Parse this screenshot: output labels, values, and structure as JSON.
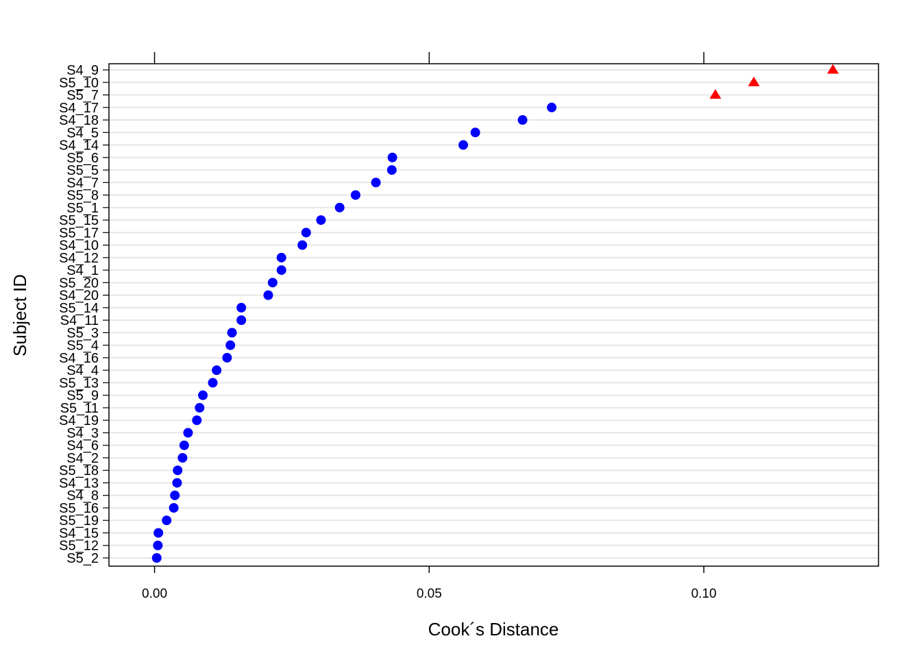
{
  "chart_data": {
    "type": "scatter",
    "xlabel": "Cook´s Distance",
    "ylabel": "Subject ID",
    "xlim": [
      -0.0083,
      0.1318
    ],
    "x_ticks": [
      0.0,
      0.05,
      0.1
    ],
    "x_tick_labels": [
      "0.00",
      "0.05",
      "0.10"
    ],
    "grid": true,
    "colors": {
      "normal": "#0000FF",
      "outlier": "#FF0000",
      "grid": "#E6E6E6"
    },
    "markers": {
      "normal": "circle",
      "outlier": "triangle"
    },
    "points": [
      {
        "id": "S4_9",
        "value": 0.1235,
        "outlier": true
      },
      {
        "id": "S5_10",
        "value": 0.1091,
        "outlier": true
      },
      {
        "id": "S5_7",
        "value": 0.1021,
        "outlier": true
      },
      {
        "id": "S4_17",
        "value": 0.0723,
        "outlier": false
      },
      {
        "id": "S4_18",
        "value": 0.067,
        "outlier": false
      },
      {
        "id": "S4_5",
        "value": 0.0584,
        "outlier": false
      },
      {
        "id": "S4_14",
        "value": 0.0562,
        "outlier": false
      },
      {
        "id": "S5_6",
        "value": 0.0433,
        "outlier": false
      },
      {
        "id": "S5_5",
        "value": 0.0432,
        "outlier": false
      },
      {
        "id": "S4_7",
        "value": 0.0403,
        "outlier": false
      },
      {
        "id": "S5_8",
        "value": 0.0366,
        "outlier": false
      },
      {
        "id": "S5_1",
        "value": 0.0337,
        "outlier": false
      },
      {
        "id": "S5_15",
        "value": 0.0303,
        "outlier": false
      },
      {
        "id": "S5_17",
        "value": 0.0276,
        "outlier": false
      },
      {
        "id": "S4_10",
        "value": 0.0269,
        "outlier": false
      },
      {
        "id": "S4_12",
        "value": 0.0231,
        "outlier": false
      },
      {
        "id": "S4_1",
        "value": 0.0231,
        "outlier": false
      },
      {
        "id": "S5_20",
        "value": 0.0215,
        "outlier": false
      },
      {
        "id": "S4_20",
        "value": 0.0207,
        "outlier": false
      },
      {
        "id": "S5_14",
        "value": 0.0158,
        "outlier": false
      },
      {
        "id": "S4_11",
        "value": 0.0158,
        "outlier": false
      },
      {
        "id": "S5_3",
        "value": 0.0141,
        "outlier": false
      },
      {
        "id": "S5_4",
        "value": 0.0138,
        "outlier": false
      },
      {
        "id": "S4_16",
        "value": 0.0132,
        "outlier": false
      },
      {
        "id": "S4_4",
        "value": 0.0113,
        "outlier": false
      },
      {
        "id": "S5_13",
        "value": 0.0106,
        "outlier": false
      },
      {
        "id": "S5_9",
        "value": 0.0088,
        "outlier": false
      },
      {
        "id": "S5_11",
        "value": 0.0082,
        "outlier": false
      },
      {
        "id": "S4_19",
        "value": 0.0077,
        "outlier": false
      },
      {
        "id": "S4_3",
        "value": 0.0061,
        "outlier": false
      },
      {
        "id": "S4_6",
        "value": 0.0054,
        "outlier": false
      },
      {
        "id": "S4_2",
        "value": 0.0051,
        "outlier": false
      },
      {
        "id": "S5_18",
        "value": 0.0042,
        "outlier": false
      },
      {
        "id": "S4_13",
        "value": 0.0041,
        "outlier": false
      },
      {
        "id": "S4_8",
        "value": 0.0037,
        "outlier": false
      },
      {
        "id": "S5_16",
        "value": 0.0035,
        "outlier": false
      },
      {
        "id": "S5_19",
        "value": 0.0022,
        "outlier": false
      },
      {
        "id": "S4_15",
        "value": 0.0007,
        "outlier": false
      },
      {
        "id": "S5_12",
        "value": 0.0006,
        "outlier": false
      },
      {
        "id": "S5_2",
        "value": 0.0004,
        "outlier": false
      }
    ]
  }
}
